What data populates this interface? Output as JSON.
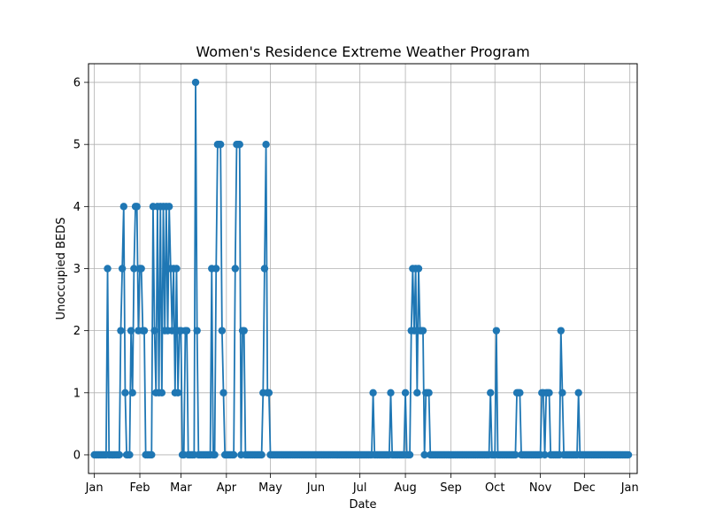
{
  "chart_data": {
    "type": "line",
    "title": "Women's Residence Extreme Weather Program",
    "xlabel": "Date",
    "ylabel": "Unoccupied BEDS",
    "x_range": [
      "2022-12-28",
      "2024-01-06"
    ],
    "ylim": [
      -0.3,
      6.3
    ],
    "grid": true,
    "marker": "circle",
    "series_color": "#1f77b4",
    "x_ticks": [
      {
        "label": "Jan",
        "date": "2023-01-01"
      },
      {
        "label": "Feb",
        "date": "2023-02-01"
      },
      {
        "label": "Mar",
        "date": "2023-03-01"
      },
      {
        "label": "Apr",
        "date": "2023-04-01"
      },
      {
        "label": "May",
        "date": "2023-05-01"
      },
      {
        "label": "Jun",
        "date": "2023-06-01"
      },
      {
        "label": "Jul",
        "date": "2023-07-01"
      },
      {
        "label": "Aug",
        "date": "2023-08-01"
      },
      {
        "label": "Sep",
        "date": "2023-09-01"
      },
      {
        "label": "Oct",
        "date": "2023-10-01"
      },
      {
        "label": "Nov",
        "date": "2023-11-01"
      },
      {
        "label": "Dec",
        "date": "2023-12-01"
      },
      {
        "label": "Jan",
        "date": "2024-01-01"
      }
    ],
    "y_ticks": [
      0,
      1,
      2,
      3,
      4,
      5,
      6
    ],
    "series": [
      {
        "values_by_date": [
          [
            "2023-01-10",
            3
          ],
          [
            "2023-01-19",
            2
          ],
          [
            "2023-01-20",
            3
          ],
          [
            "2023-01-21",
            4
          ],
          [
            "2023-01-22",
            1
          ],
          [
            "2023-01-26",
            2
          ],
          [
            "2023-01-27",
            1
          ],
          [
            "2023-01-28",
            3
          ],
          [
            "2023-01-29",
            4
          ],
          [
            "2023-01-30",
            4
          ],
          [
            "2023-01-31",
            2
          ],
          [
            "2023-02-01",
            3
          ],
          [
            "2023-02-02",
            3
          ],
          [
            "2023-02-03",
            2
          ],
          [
            "2023-02-04",
            2
          ],
          [
            "2023-02-10",
            4
          ],
          [
            "2023-02-11",
            2
          ],
          [
            "2023-02-12",
            1
          ],
          [
            "2023-02-13",
            4
          ],
          [
            "2023-02-14",
            1
          ],
          [
            "2023-02-15",
            4
          ],
          [
            "2023-02-16",
            1
          ],
          [
            "2023-02-17",
            4
          ],
          [
            "2023-02-18",
            2
          ],
          [
            "2023-02-19",
            4
          ],
          [
            "2023-02-20",
            2
          ],
          [
            "2023-02-21",
            4
          ],
          [
            "2023-02-22",
            3
          ],
          [
            "2023-02-23",
            2
          ],
          [
            "2023-02-24",
            3
          ],
          [
            "2023-02-25",
            1
          ],
          [
            "2023-02-26",
            3
          ],
          [
            "2023-02-27",
            1
          ],
          [
            "2023-02-28",
            2
          ],
          [
            "2023-03-01",
            2
          ],
          [
            "2023-03-04",
            2
          ],
          [
            "2023-03-05",
            2
          ],
          [
            "2023-03-11",
            6
          ],
          [
            "2023-03-12",
            2
          ],
          [
            "2023-03-22",
            3
          ],
          [
            "2023-03-25",
            3
          ],
          [
            "2023-03-26",
            5
          ],
          [
            "2023-03-27",
            5
          ],
          [
            "2023-03-28",
            5
          ],
          [
            "2023-03-29",
            2
          ],
          [
            "2023-03-30",
            1
          ],
          [
            "2023-04-07",
            3
          ],
          [
            "2023-04-08",
            5
          ],
          [
            "2023-04-09",
            5
          ],
          [
            "2023-04-10",
            5
          ],
          [
            "2023-04-12",
            2
          ],
          [
            "2023-04-13",
            2
          ],
          [
            "2023-04-26",
            1
          ],
          [
            "2023-04-27",
            3
          ],
          [
            "2023-04-28",
            5
          ],
          [
            "2023-04-29",
            1
          ],
          [
            "2023-04-30",
            1
          ],
          [
            "2023-07-10",
            1
          ],
          [
            "2023-07-22",
            1
          ],
          [
            "2023-08-01",
            1
          ],
          [
            "2023-08-05",
            2
          ],
          [
            "2023-08-06",
            3
          ],
          [
            "2023-08-07",
            2
          ],
          [
            "2023-08-08",
            3
          ],
          [
            "2023-08-09",
            1
          ],
          [
            "2023-08-10",
            3
          ],
          [
            "2023-08-11",
            2
          ],
          [
            "2023-08-12",
            2
          ],
          [
            "2023-08-13",
            2
          ],
          [
            "2023-08-15",
            1
          ],
          [
            "2023-08-16",
            1
          ],
          [
            "2023-08-17",
            1
          ],
          [
            "2023-09-28",
            1
          ],
          [
            "2023-10-02",
            2
          ],
          [
            "2023-10-16",
            1
          ],
          [
            "2023-10-17",
            1
          ],
          [
            "2023-10-18",
            1
          ],
          [
            "2023-11-02",
            1
          ],
          [
            "2023-11-03",
            1
          ],
          [
            "2023-11-05",
            1
          ],
          [
            "2023-11-06",
            1
          ],
          [
            "2023-11-07",
            1
          ],
          [
            "2023-11-15",
            2
          ],
          [
            "2023-11-16",
            1
          ],
          [
            "2023-11-27",
            1
          ]
        ],
        "default_value": 0,
        "date_span": [
          "2023-01-01",
          "2023-12-31"
        ]
      }
    ]
  }
}
